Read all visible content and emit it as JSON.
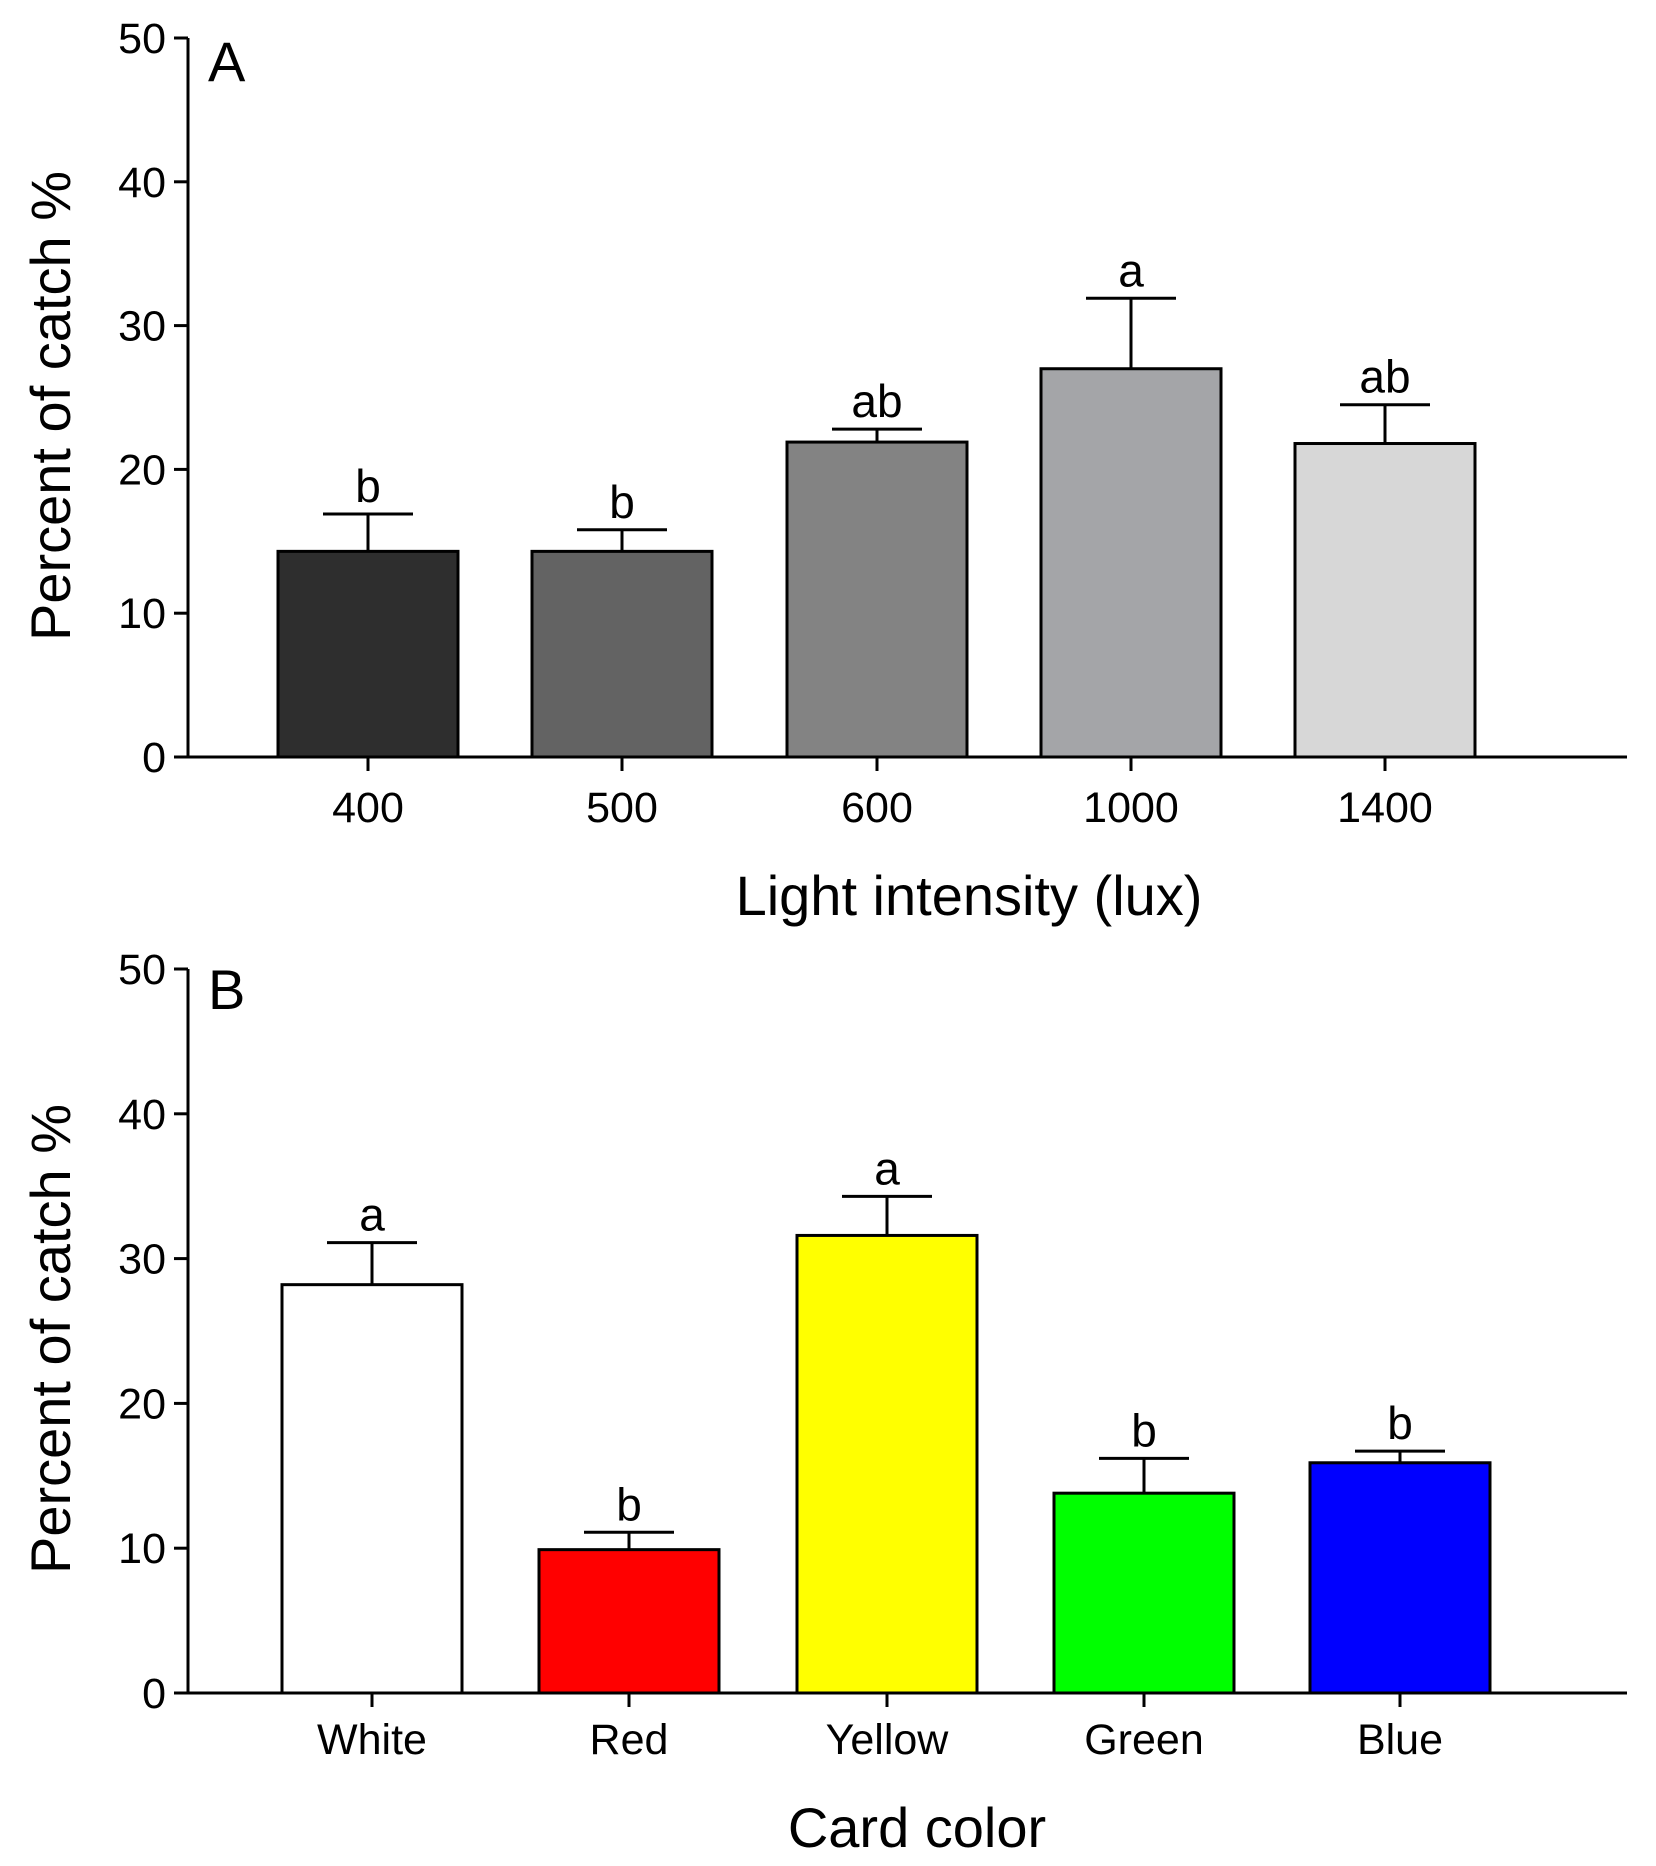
{
  "chart_data": [
    {
      "type": "bar",
      "panel": "A",
      "title": "",
      "xlabel": "Light intensity (lux)",
      "ylabel": "Percent of catch %",
      "ylim": [
        0,
        50
      ],
      "yticks": [
        0,
        10,
        20,
        30,
        40,
        50
      ],
      "categories": [
        "400",
        "500",
        "600",
        "1000",
        "1400"
      ],
      "values": [
        14.3,
        14.3,
        21.9,
        27.0,
        21.8
      ],
      "errors": [
        2.6,
        1.5,
        0.9,
        4.9,
        2.7
      ],
      "significance": [
        "b",
        "b",
        "ab",
        "a",
        "ab"
      ],
      "colors": [
        "#2e2e2e",
        "#636363",
        "#838383",
        "#a4a5a8",
        "#d7d7d7"
      ],
      "grid": false,
      "legend": "none"
    },
    {
      "type": "bar",
      "panel": "B",
      "title": "",
      "xlabel": "Card color",
      "ylabel": "Percent of catch %",
      "ylim": [
        0,
        50
      ],
      "yticks": [
        0,
        10,
        20,
        30,
        40,
        50
      ],
      "categories": [
        "White",
        "Red",
        "Yellow",
        "Green",
        "Blue"
      ],
      "values": [
        28.2,
        9.9,
        31.6,
        13.8,
        15.9
      ],
      "errors": [
        2.9,
        1.2,
        2.7,
        2.4,
        0.8
      ],
      "significance": [
        "a",
        "b",
        "a",
        "b",
        "b"
      ],
      "colors": [
        "#ffffff",
        "#ff0000",
        "#ffff00",
        "#00ff00",
        "#0000ff"
      ],
      "grid": false,
      "legend": "none"
    }
  ]
}
